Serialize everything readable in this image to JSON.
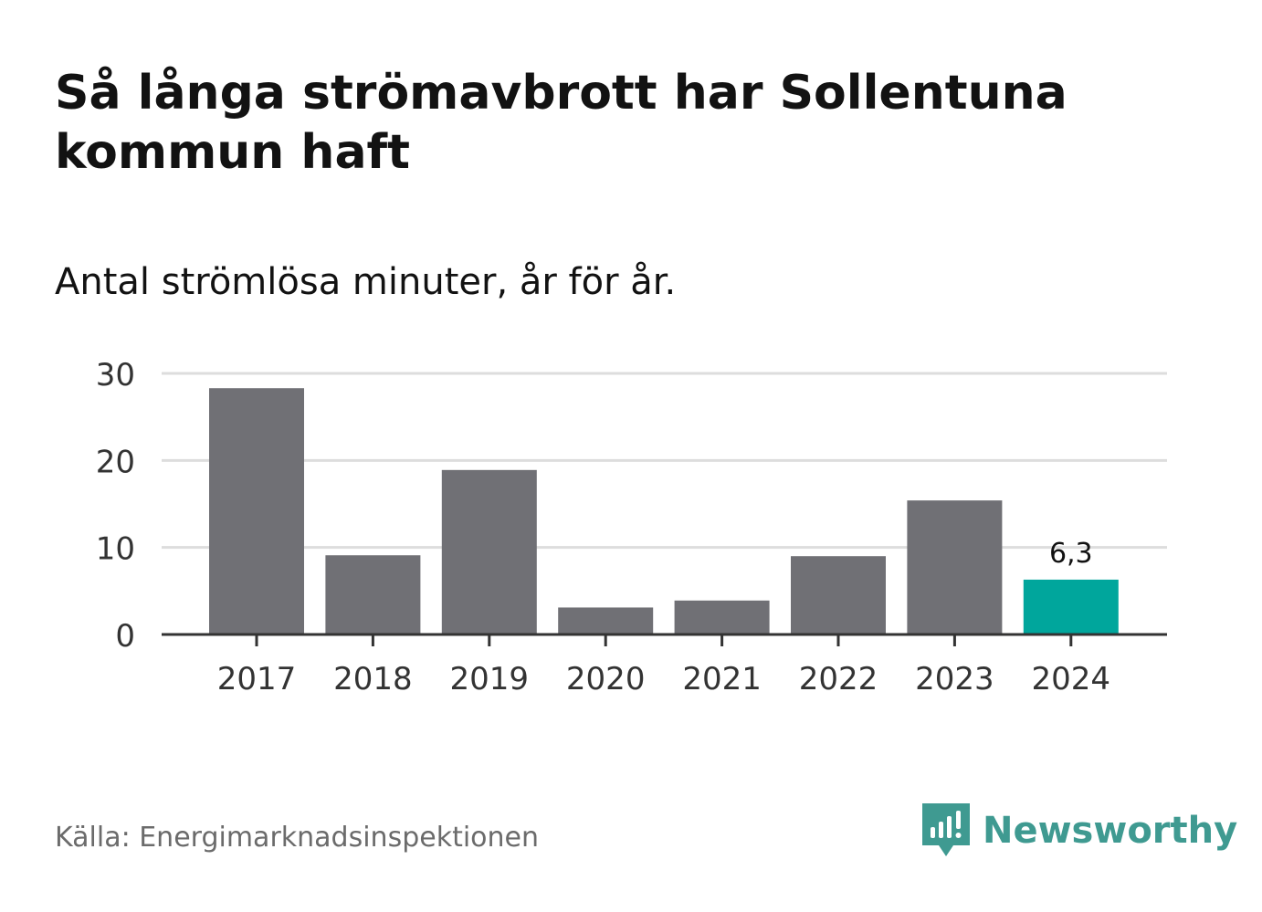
{
  "title": "Så långa strömavbrott har Sollentuna kommun haft",
  "subtitle": "Antal strömlösa minuter, år för år.",
  "source": "Källa: Energimarknadsinspektionen",
  "brand": {
    "name": "Newsworthy",
    "color": "#3f9a91"
  },
  "chart_data": {
    "type": "bar",
    "title": "Så långa strömavbrott har Sollentuna kommun haft",
    "subtitle": "Antal strömlösa minuter, år för år.",
    "categories": [
      "2017",
      "2018",
      "2019",
      "2020",
      "2021",
      "2022",
      "2023",
      "2024"
    ],
    "values": [
      28.3,
      9.1,
      18.9,
      3.1,
      3.9,
      9.0,
      15.4,
      6.3
    ],
    "ylim": [
      0,
      30
    ],
    "yticks": [
      "0",
      "10",
      "20",
      "30"
    ],
    "xlabel": "",
    "ylabel": "",
    "grid": true,
    "highlight": {
      "index": 7,
      "label": "6,3"
    },
    "colors": {
      "bar": "#707075",
      "highlight": "#00a69c",
      "grid": "#dddddd",
      "axis": "#333333"
    }
  }
}
